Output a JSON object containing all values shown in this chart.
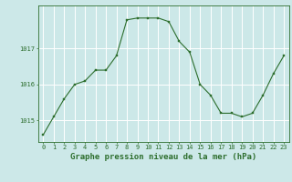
{
  "x": [
    0,
    1,
    2,
    3,
    4,
    5,
    6,
    7,
    8,
    9,
    10,
    11,
    12,
    13,
    14,
    15,
    16,
    17,
    18,
    19,
    20,
    21,
    22,
    23
  ],
  "y": [
    1014.6,
    1015.1,
    1015.6,
    1016.0,
    1016.1,
    1016.4,
    1016.4,
    1016.8,
    1017.8,
    1017.85,
    1017.85,
    1017.85,
    1017.75,
    1017.2,
    1016.9,
    1016.0,
    1015.7,
    1015.2,
    1015.2,
    1015.1,
    1015.2,
    1015.7,
    1016.3,
    1016.8
  ],
  "line_color": "#2d6e2d",
  "marker_color": "#2d6e2d",
  "bg_color": "#cce8e8",
  "grid_color": "#ffffff",
  "axis_color": "#2d6e2d",
  "label_color": "#2d6e2d",
  "xlabel": "Graphe pression niveau de la mer (hPa)",
  "ylim": [
    1014.4,
    1018.2
  ],
  "yticks": [
    1015,
    1016,
    1017
  ],
  "xticks": [
    0,
    1,
    2,
    3,
    4,
    5,
    6,
    7,
    8,
    9,
    10,
    11,
    12,
    13,
    14,
    15,
    16,
    17,
    18,
    19,
    20,
    21,
    22,
    23
  ],
  "tick_fontsize": 5.0,
  "xlabel_fontsize": 6.5,
  "marker_size": 2.0,
  "line_width": 0.8
}
